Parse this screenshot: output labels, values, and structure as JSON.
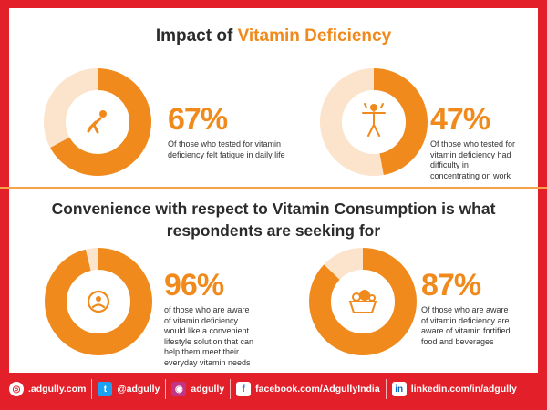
{
  "header": {
    "title_prefix": "Impact of ",
    "title_accent": "Vitamin Deficiency"
  },
  "section2": {
    "title_line1": "Convenience with respect to Vitamin Consumption is what",
    "title_line2": "respondents are seeking for"
  },
  "chart_data": [
    {
      "type": "pie",
      "values": [
        67,
        33
      ],
      "value_label": "67%",
      "description_lines": [
        "Of those who tested for vitamin",
        "deficiency felt fatigue in daily life"
      ],
      "icon": "fatigue-person-icon"
    },
    {
      "type": "pie",
      "values": [
        47,
        53
      ],
      "value_label": "47%",
      "description_lines": [
        "Of those who tested for",
        "vitamin deficiency had",
        "difficulty in",
        "concentrating on work"
      ],
      "icon": "focus-person-icon"
    },
    {
      "type": "pie",
      "values": [
        96,
        4
      ],
      "value_label": "96%",
      "description_lines": [
        "of those who are aware",
        "of vitamin deficiency",
        "would like a convenient",
        "lifestyle solution that can",
        "help them meet their",
        "everyday vitamin needs"
      ],
      "icon": "lifestyle-cycle-icon"
    },
    {
      "type": "pie",
      "values": [
        87,
        13
      ],
      "value_label": "87%",
      "description_lines": [
        "Of those who are aware",
        "of vitamin deficiency are",
        "aware of vitamin fortified",
        "food and beverages"
      ],
      "icon": "fortified-food-icon"
    }
  ],
  "colors": {
    "accent": "#f08a1c",
    "ring_bg": "#fbe3cc",
    "frame": "#e3202a"
  },
  "footer": {
    "site": ".adgully.com",
    "twitter": "@adgully",
    "instagram": "adgully",
    "facebook": "facebook.com/AdgullyIndia",
    "linkedin": "linkedin.com/in/adgully"
  }
}
